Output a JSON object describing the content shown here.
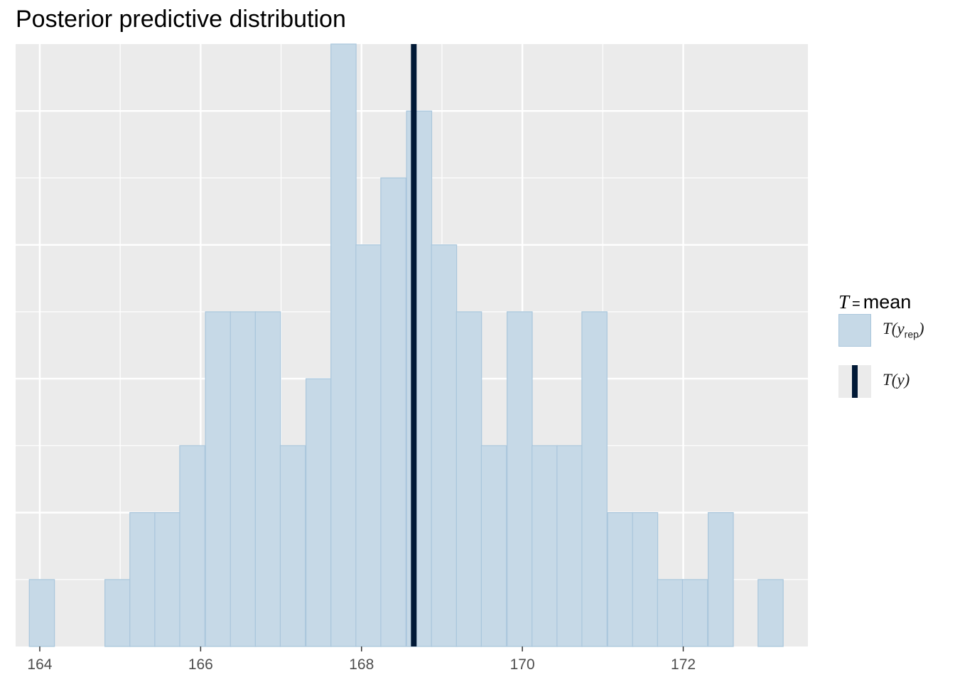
{
  "chart_data": {
    "type": "bar",
    "title": "Posterior predictive distribution",
    "xlabel": "",
    "ylabel": "",
    "xlim": [
      163.7,
      173.55
    ],
    "xticks": [
      164,
      166,
      168,
      170,
      172
    ],
    "bin_width": 0.3125,
    "bins": [
      {
        "x0": 163.87,
        "count": 1
      },
      {
        "x0": 164.18,
        "count": 0
      },
      {
        "x0": 164.49,
        "count": 0
      },
      {
        "x0": 164.81,
        "count": 1
      },
      {
        "x0": 165.12,
        "count": 2
      },
      {
        "x0": 165.43,
        "count": 2
      },
      {
        "x0": 165.74,
        "count": 3
      },
      {
        "x0": 166.06,
        "count": 5
      },
      {
        "x0": 166.37,
        "count": 5
      },
      {
        "x0": 166.68,
        "count": 5
      },
      {
        "x0": 166.99,
        "count": 3
      },
      {
        "x0": 167.31,
        "count": 4
      },
      {
        "x0": 167.62,
        "count": 9
      },
      {
        "x0": 167.93,
        "count": 6
      },
      {
        "x0": 168.24,
        "count": 7
      },
      {
        "x0": 168.56,
        "count": 8
      },
      {
        "x0": 168.87,
        "count": 6
      },
      {
        "x0": 169.18,
        "count": 5
      },
      {
        "x0": 169.49,
        "count": 3
      },
      {
        "x0": 169.81,
        "count": 5
      },
      {
        "x0": 170.12,
        "count": 3
      },
      {
        "x0": 170.43,
        "count": 3
      },
      {
        "x0": 170.74,
        "count": 5
      },
      {
        "x0": 171.06,
        "count": 2
      },
      {
        "x0": 171.37,
        "count": 2
      },
      {
        "x0": 171.68,
        "count": 1
      },
      {
        "x0": 171.99,
        "count": 1
      },
      {
        "x0": 172.31,
        "count": 2
      },
      {
        "x0": 172.62,
        "count": 0
      },
      {
        "x0": 172.93,
        "count": 1
      }
    ],
    "ylim": [
      0,
      9
    ],
    "observed_value": 168.65,
    "grid": true,
    "legend_position": "right",
    "colors": {
      "panel": "#ebebeb",
      "grid": "#ffffff",
      "bar_fill": "#c6d9e7",
      "bar_stroke": "#a9c6dc",
      "observed_line": "#011936"
    },
    "legend": {
      "title_stat": "T",
      "title_eq": "=",
      "title_word": "mean",
      "entries": [
        {
          "label_main": "T(y",
          "label_sub": "rep",
          "label_end": ")"
        },
        {
          "label_main": "T(y)"
        }
      ]
    }
  }
}
